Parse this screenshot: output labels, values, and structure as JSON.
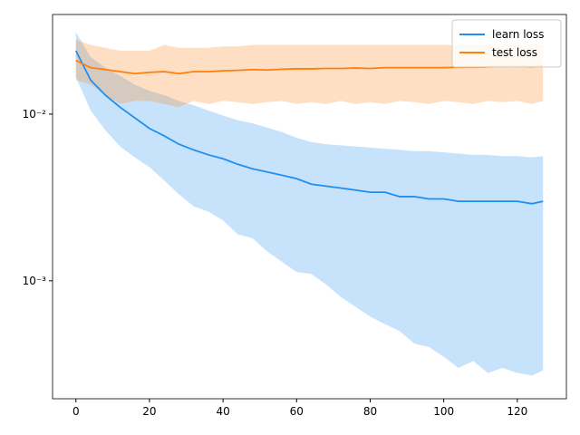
{
  "chart_data": {
    "type": "line",
    "log_y": true,
    "legend": "upper right",
    "x": [
      0,
      4,
      8,
      12,
      16,
      20,
      24,
      28,
      32,
      36,
      40,
      44,
      48,
      52,
      56,
      60,
      64,
      68,
      72,
      76,
      80,
      84,
      88,
      92,
      96,
      100,
      104,
      108,
      112,
      116,
      120,
      124,
      127
    ],
    "xlim": [
      -6.35,
      133.35
    ],
    "xticks": [
      0,
      20,
      40,
      60,
      80,
      100,
      120
    ],
    "ylim": [
      0.000196,
      0.0396
    ],
    "yticks": [
      {
        "value": 0.001,
        "label": "10⁻³"
      },
      {
        "value": 0.01,
        "label": "10⁻²"
      }
    ],
    "series": [
      {
        "name": "learn loss",
        "color": "#1f8ff0",
        "values": [
          0.024,
          0.016,
          0.013,
          0.011,
          0.0095,
          0.0082,
          0.0074,
          0.0066,
          0.0061,
          0.0057,
          0.0054,
          0.005,
          0.0047,
          0.0045,
          0.0043,
          0.0041,
          0.0038,
          0.0037,
          0.0036,
          0.0035,
          0.0034,
          0.0034,
          0.0032,
          0.0032,
          0.0031,
          0.0031,
          0.003,
          0.003,
          0.003,
          0.003,
          0.003,
          0.0029,
          0.003
        ],
        "upper": [
          0.031,
          0.022,
          0.019,
          0.017,
          0.015,
          0.0138,
          0.013,
          0.012,
          0.0113,
          0.0105,
          0.0098,
          0.0092,
          0.0088,
          0.0083,
          0.0078,
          0.0072,
          0.0068,
          0.0066,
          0.0065,
          0.0064,
          0.0063,
          0.0062,
          0.0061,
          0.006,
          0.006,
          0.0059,
          0.0058,
          0.0057,
          0.0057,
          0.0056,
          0.0056,
          0.0055,
          0.0056
        ],
        "lower": [
          0.0167,
          0.0105,
          0.008,
          0.0064,
          0.0055,
          0.0048,
          0.004,
          0.0033,
          0.0028,
          0.0026,
          0.0023,
          0.0019,
          0.0018,
          0.0015,
          0.0013,
          0.00113,
          0.0011,
          0.00095,
          0.0008,
          0.0007,
          0.00061,
          0.00055,
          0.0005,
          0.00042,
          0.0004,
          0.00035,
          0.0003,
          0.00033,
          0.00028,
          0.0003,
          0.00028,
          0.00027,
          0.00029
        ]
      },
      {
        "name": "test loss",
        "color": "#ff7f0e",
        "values": [
          0.021,
          0.019,
          0.0185,
          0.018,
          0.0175,
          0.0178,
          0.018,
          0.0175,
          0.018,
          0.018,
          0.0182,
          0.0183,
          0.0185,
          0.0184,
          0.0186,
          0.0187,
          0.0187,
          0.0188,
          0.0188,
          0.0189,
          0.0188,
          0.019,
          0.019,
          0.019,
          0.019,
          0.019,
          0.0191,
          0.0191,
          0.0192,
          0.0193,
          0.0193,
          0.0192,
          0.0194
        ],
        "upper": [
          0.028,
          0.026,
          0.025,
          0.024,
          0.024,
          0.024,
          0.026,
          0.025,
          0.025,
          0.025,
          0.0255,
          0.0255,
          0.026,
          0.026,
          0.026,
          0.026,
          0.026,
          0.026,
          0.026,
          0.026,
          0.026,
          0.026,
          0.026,
          0.026,
          0.026,
          0.026,
          0.026,
          0.026,
          0.026,
          0.026,
          0.026,
          0.026,
          0.026
        ],
        "lower": [
          0.016,
          0.015,
          0.013,
          0.0115,
          0.012,
          0.012,
          0.0115,
          0.011,
          0.012,
          0.0115,
          0.012,
          0.0118,
          0.0115,
          0.0118,
          0.012,
          0.0115,
          0.0118,
          0.0115,
          0.012,
          0.0115,
          0.0118,
          0.0115,
          0.012,
          0.0118,
          0.0115,
          0.012,
          0.0118,
          0.0115,
          0.012,
          0.0118,
          0.012,
          0.0115,
          0.012
        ]
      }
    ]
  }
}
